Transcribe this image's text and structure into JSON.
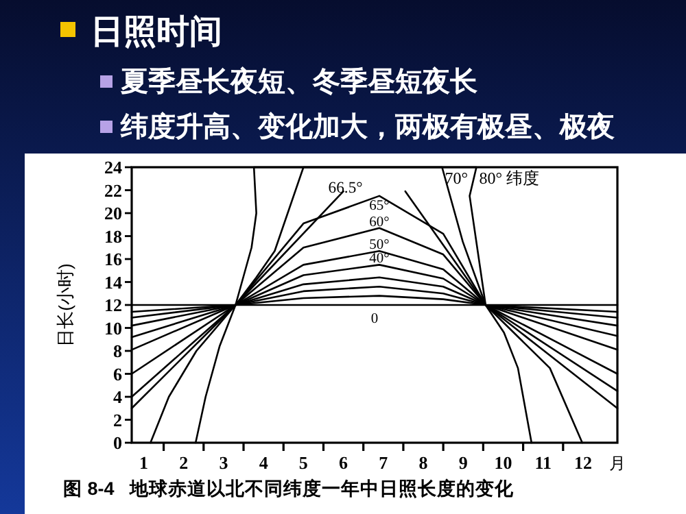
{
  "chart_data": {
    "type": "line",
    "title": "日照时间",
    "annotations": [
      "夏季昼长夜短、冬季昼短夜长",
      "纬度升高、变化加大，两极有极昼、极夜",
      "图 8-4   地球赤道以北不同纬度一年中日照长度的变化",
      "纬度"
    ],
    "ylabel": "日长(小时)",
    "xlabel": "月",
    "xlim": [
      0.7,
      12.86
    ],
    "ylim": [
      0,
      24
    ],
    "xticks": [
      1,
      {
        "value": 1.5,
        "label": null
      },
      2,
      {
        "value": 2.5,
        "label": null
      },
      3,
      {
        "value": 3.5,
        "label": null
      },
      4,
      {
        "value": 4.5,
        "label": null
      },
      5,
      {
        "value": 5.5,
        "label": null
      },
      6,
      {
        "value": 6.5,
        "label": null
      },
      7,
      {
        "value": 7.5,
        "label": null
      },
      8,
      {
        "value": 8.5,
        "label": null
      },
      9,
      {
        "value": 9.5,
        "label": null
      },
      10,
      {
        "value": 10.5,
        "label": null
      },
      11,
      {
        "value": 11.5,
        "label": null
      },
      12
    ],
    "yticks": [
      0,
      2,
      4,
      6,
      8,
      10,
      12,
      14,
      16,
      18,
      20,
      22,
      24
    ],
    "grid": false,
    "legend": false,
    "marker": "none",
    "line_style": "solid",
    "series": [
      {
        "name": "0",
        "color": "#000000",
        "x": [
          0.7,
          3.3,
          6.9,
          9.56,
          12.86
        ],
        "values": [
          12,
          12,
          12,
          12,
          12
        ]
      },
      {
        "color": "#000000",
        "x": [
          0.7,
          3.3,
          5.0,
          6.9,
          8.5,
          9.56,
          12.86
        ],
        "values": [
          11.4,
          12,
          12.6,
          12.8,
          12.5,
          12,
          11.4
        ]
      },
      {
        "color": "#000000",
        "x": [
          0.7,
          3.3,
          5.0,
          6.9,
          8.5,
          9.56,
          12.86
        ],
        "values": [
          10.9,
          12,
          13.2,
          13.6,
          13.0,
          12,
          10.9
        ]
      },
      {
        "color": "#000000",
        "x": [
          0.7,
          3.3,
          5.0,
          6.9,
          8.5,
          9.56,
          12.86
        ],
        "values": [
          10.2,
          12,
          13.8,
          14.4,
          13.6,
          12,
          10.2
        ]
      },
      {
        "name": "40°",
        "color": "#000000",
        "x": [
          0.7,
          3.3,
          5.0,
          6.9,
          8.5,
          9.56,
          12.86
        ],
        "values": [
          9.2,
          12,
          14.6,
          15.5,
          14.3,
          12,
          9.3
        ]
      },
      {
        "name": "50°",
        "color": "#000000",
        "x": [
          0.7,
          3.3,
          5.0,
          6.9,
          8.5,
          9.56,
          12.86
        ],
        "values": [
          8.1,
          12,
          15.5,
          16.7,
          15.1,
          12,
          8.1
        ]
      },
      {
        "name": "60°",
        "color": "#000000",
        "x": [
          0.7,
          3.3,
          5.0,
          6.9,
          8.5,
          9.56,
          12.86
        ],
        "values": [
          6.0,
          12,
          17.0,
          18.7,
          16.4,
          12,
          6.0
        ]
      },
      {
        "name": "65°",
        "color": "#000000",
        "x": [
          0.7,
          3.3,
          5.0,
          6.9,
          8.5,
          9.56,
          12.86
        ],
        "values": [
          4.0,
          12,
          19.1,
          21.5,
          18.2,
          12,
          4.5
        ]
      },
      {
        "name": "66.5°",
        "color": "#000000",
        "x": [
          0.7,
          3.3,
          6.0,
          6.8,
          7.55,
          9.56,
          12.86
        ],
        "values": [
          3.0,
          12,
          21.9,
          null,
          21.9,
          12,
          3.0
        ]
      },
      {
        "name": "70°",
        "color": "#000000",
        "x": [
          1.17,
          1.63,
          2.32,
          3.3,
          3.82,
          4.28,
          5.0,
          6.7,
          8.47,
          8.99,
          9.56,
          11.17,
          11.98
        ],
        "values": [
          0,
          4,
          8,
          12,
          14.4,
          16.7,
          24,
          24,
          24,
          17.5,
          12,
          6.5,
          0
        ]
      },
      {
        "name": "80°",
        "color": "#000000",
        "x": [
          2.3,
          2.55,
          2.9,
          3.3,
          3.7,
          3.82,
          3.76,
          6.5,
          9.33,
          9.16,
          9.56,
          10.02,
          10.37,
          10.71
        ],
        "values": [
          0,
          4,
          8.4,
          12,
          17,
          20,
          24,
          24,
          24,
          21.5,
          12,
          9.6,
          6.5,
          0
        ]
      }
    ]
  }
}
